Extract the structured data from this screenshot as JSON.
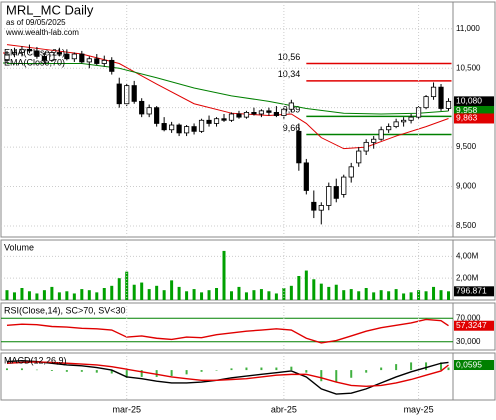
{
  "chart_data": [
    {
      "type": "candlestick",
      "title": "MRL_MC Daily",
      "subtitle": "as of 09/05/2025",
      "source": "www.wealth-lab.com",
      "xlim": [
        -0.8,
        59.6
      ],
      "ylim": [
        8360,
        11340
      ],
      "yticks": [
        {
          "value": 8500,
          "label": "8,500"
        },
        {
          "value": 9000,
          "label": "9,000"
        },
        {
          "value": 9500,
          "label": "9,500"
        },
        {
          "value": 10000,
          "label": "10,000"
        },
        {
          "value": 10500,
          "label": "10,500"
        },
        {
          "value": 11000,
          "label": "11,000"
        }
      ],
      "open": [
        10600,
        10680,
        10700,
        10740,
        10720,
        10650,
        10600,
        10700,
        10680,
        10620,
        10680,
        10580,
        10620,
        10560,
        10600,
        10300,
        10050,
        10280,
        10080,
        9920,
        10000,
        9800,
        9720,
        9780,
        9680,
        9760,
        9700,
        9840,
        9800,
        9860,
        9840,
        9920,
        9880,
        9940,
        9920,
        9960,
        9940,
        9900,
        9980,
        9700,
        9300,
        8800,
        8700,
        8760,
        9000,
        8900,
        9120,
        9300,
        9450,
        9560,
        9600,
        9720,
        9760,
        9820,
        9840,
        9880,
        10000,
        10140,
        10260,
        9990
      ],
      "high": [
        10720,
        10760,
        10780,
        10800,
        10770,
        10700,
        10720,
        10760,
        10740,
        10700,
        10720,
        10650,
        10680,
        10660,
        10640,
        10380,
        10300,
        10340,
        10120,
        10040,
        10020,
        9880,
        9820,
        9800,
        9780,
        9800,
        9860,
        9900,
        9880,
        9920,
        9940,
        9960,
        9960,
        10000,
        9980,
        10000,
        10020,
        10000,
        10100,
        9800,
        9350,
        8950,
        8800,
        9050,
        9100,
        9150,
        9300,
        9500,
        9600,
        9640,
        9760,
        9800,
        9860,
        9880,
        9920,
        10020,
        10160,
        10320,
        10300,
        10120
      ],
      "low": [
        10560,
        10640,
        10650,
        10690,
        10620,
        10560,
        10580,
        10650,
        10600,
        10580,
        10560,
        10500,
        10540,
        10520,
        10420,
        10000,
        10020,
        10050,
        9880,
        9880,
        9760,
        9700,
        9680,
        9640,
        9640,
        9660,
        9680,
        9760,
        9760,
        9820,
        9820,
        9860,
        9860,
        9900,
        9880,
        9900,
        9880,
        9860,
        9940,
        9200,
        8900,
        8600,
        8520,
        8700,
        8800,
        8860,
        9050,
        9250,
        9400,
        9480,
        9580,
        9680,
        9740,
        9760,
        9800,
        9860,
        9980,
        10100,
        9960,
        9960
      ],
      "close": [
        10680,
        10700,
        10740,
        10720,
        10650,
        10600,
        10700,
        10680,
        10620,
        10680,
        10580,
        10620,
        10560,
        10600,
        10460,
        10050,
        10280,
        10080,
        9920,
        10000,
        9800,
        9720,
        9780,
        9680,
        9760,
        9700,
        9840,
        9800,
        9860,
        9840,
        9920,
        9880,
        9940,
        9920,
        9960,
        9940,
        9900,
        9980,
        10060,
        9300,
        8950,
        8700,
        8760,
        9000,
        8850,
        9120,
        9250,
        9450,
        9560,
        9600,
        9720,
        9760,
        9820,
        9840,
        9880,
        10000,
        10140,
        10260,
        9990,
        10080
      ],
      "series": [
        {
          "name": "EMA(Close,21)",
          "color": "#e00000",
          "x": [
            0,
            5,
            10,
            15,
            20,
            25,
            30,
            35,
            38,
            40,
            42,
            45,
            48,
            52,
            56,
            59
          ],
          "values": [
            10800,
            10740,
            10680,
            10560,
            10300,
            10050,
            9930,
            9900,
            9920,
            9800,
            9620,
            9480,
            9500,
            9640,
            9760,
            9863
          ]
        },
        {
          "name": "EMA(Close,70)",
          "color": "#008000",
          "x": [
            0,
            10,
            15,
            20,
            25,
            30,
            35,
            40,
            45,
            50,
            55,
            59
          ],
          "values": [
            10560,
            10560,
            10500,
            10380,
            10250,
            10150,
            10080,
            9990,
            9930,
            9920,
            9930,
            9958
          ]
        }
      ],
      "levels": [
        {
          "value": 10560,
          "label": "10,56",
          "color": "#e00000",
          "x": [
            40,
            59.4
          ]
        },
        {
          "value": 10340,
          "label": "10,34",
          "color": "#e00000",
          "x": [
            40,
            59.4
          ]
        },
        {
          "value": 9890,
          "label": "9,89",
          "color": "#008000",
          "x": [
            40,
            59.4
          ]
        },
        {
          "value": 9660,
          "label": "9,66",
          "color": "#008000",
          "x": [
            40,
            59.4
          ]
        }
      ],
      "last_labels": [
        {
          "value": 10080,
          "label": "10,080",
          "color": "#000000"
        },
        {
          "value": 9958,
          "label": "9,958",
          "color": "#008000"
        },
        {
          "value": 9863,
          "label": "9,863",
          "color": "#e00000"
        }
      ]
    },
    {
      "type": "bar",
      "title": "Volume",
      "color": "#00a000",
      "xlim": [
        -0.8,
        59.6
      ],
      "ylim": [
        0,
        5.5
      ],
      "yticks": [
        {
          "value": 2,
          "label": "2,00M"
        },
        {
          "value": 4,
          "label": "4,00M"
        }
      ],
      "values": [
        0.9,
        0.7,
        1.1,
        0.8,
        0.6,
        0.9,
        1.2,
        0.7,
        0.8,
        0.6,
        1.0,
        0.9,
        0.7,
        1.1,
        1.3,
        2.0,
        2.6,
        1.4,
        1.6,
        1.0,
        1.3,
        0.9,
        1.8,
        1.2,
        0.8,
        1.0,
        0.7,
        0.9,
        1.1,
        4.5,
        0.8,
        1.2,
        0.7,
        0.9,
        1.0,
        0.8,
        0.6,
        1.1,
        1.3,
        2.2,
        2.7,
        1.9,
        1.5,
        1.2,
        1.4,
        0.9,
        1.0,
        0.8,
        1.1,
        0.7,
        0.9,
        0.8,
        1.0,
        0.6,
        0.7,
        0.9,
        0.8,
        1.2,
        0.9,
        0.796871
      ],
      "last_labels": [
        {
          "value": 0.796871,
          "label": "796.871",
          "color": "#000000"
        }
      ]
    },
    {
      "type": "line",
      "title": "RSI(Close,14), SC>70, SV<30",
      "xlim": [
        -0.8,
        59.6
      ],
      "ylim": [
        16,
        96
      ],
      "yticks": [
        {
          "value": 30,
          "label": "30,000"
        },
        {
          "value": 70,
          "label": "70,000"
        }
      ],
      "series": [
        {
          "name": "RSI",
          "color": "#e00000",
          "x": [
            0,
            2,
            4,
            6,
            8,
            10,
            12,
            14,
            16,
            18,
            20,
            22,
            24,
            26,
            28,
            30,
            32,
            34,
            36,
            38,
            40,
            42,
            44,
            46,
            48,
            50,
            52,
            54,
            56,
            58,
            59
          ],
          "values": [
            58,
            60,
            59,
            56,
            55,
            53,
            52,
            50,
            38,
            40,
            36,
            34,
            38,
            37,
            42,
            45,
            48,
            50,
            52,
            50,
            36,
            28,
            32,
            40,
            48,
            54,
            58,
            62,
            68,
            66,
            57.3247
          ]
        }
      ],
      "last_labels": [
        {
          "value": 57.3247,
          "label": "57,3247",
          "color": "#e00000"
        }
      ]
    },
    {
      "type": "line",
      "title": "MACD(12,26,9)",
      "xlim": [
        -0.8,
        59.6
      ],
      "ylim": [
        -0.35,
        0.2
      ],
      "xticks": [
        {
          "value": 16,
          "label": "mar-25"
        },
        {
          "value": 37,
          "label": "abr-25"
        },
        {
          "value": 55,
          "label": "may-25"
        }
      ],
      "histogram": {
        "color": "#40b040",
        "x": [
          0,
          2,
          4,
          6,
          8,
          10,
          12,
          14,
          16,
          18,
          20,
          22,
          24,
          26,
          28,
          30,
          32,
          34,
          36,
          38,
          40,
          42,
          44,
          46,
          48,
          50,
          52,
          54,
          56,
          58,
          59
        ],
        "values": [
          0.02,
          0.02,
          0.005,
          -0.01,
          -0.02,
          -0.02,
          -0.03,
          -0.04,
          -0.09,
          -0.08,
          -0.08,
          -0.07,
          -0.05,
          -0.02,
          0,
          0.02,
          0.03,
          0.03,
          0.03,
          0.04,
          -0.03,
          -0.13,
          -0.14,
          -0.09,
          -0.03,
          0.03,
          0.07,
          0.09,
          0.09,
          0.09,
          0.03
        ]
      },
      "series": [
        {
          "name": "MACD",
          "color": "#000000",
          "x": [
            0,
            2,
            4,
            6,
            8,
            10,
            12,
            14,
            16,
            18,
            20,
            22,
            24,
            26,
            28,
            30,
            32,
            34,
            36,
            38,
            40,
            42,
            44,
            46,
            48,
            50,
            52,
            54,
            56,
            58,
            59
          ],
          "values": [
            0.1,
            0.11,
            0.1,
            0.08,
            0.06,
            0.05,
            0.03,
            0.0,
            -0.08,
            -0.1,
            -0.13,
            -0.15,
            -0.15,
            -0.14,
            -0.12,
            -0.09,
            -0.07,
            -0.05,
            -0.03,
            -0.01,
            -0.08,
            -0.22,
            -0.28,
            -0.27,
            -0.22,
            -0.15,
            -0.08,
            -0.02,
            0.03,
            0.08,
            0.09
          ]
        },
        {
          "name": "Signal",
          "color": "#e00000",
          "x": [
            0,
            2,
            4,
            6,
            8,
            10,
            12,
            14,
            16,
            18,
            20,
            22,
            24,
            26,
            28,
            30,
            32,
            34,
            36,
            38,
            40,
            42,
            44,
            46,
            48,
            50,
            52,
            54,
            56,
            58,
            59
          ],
          "values": [
            0.08,
            0.09,
            0.095,
            0.09,
            0.08,
            0.07,
            0.06,
            0.04,
            0.01,
            -0.02,
            -0.05,
            -0.08,
            -0.1,
            -0.12,
            -0.12,
            -0.11,
            -0.1,
            -0.08,
            -0.06,
            -0.05,
            -0.05,
            -0.09,
            -0.14,
            -0.18,
            -0.19,
            -0.18,
            -0.15,
            -0.11,
            -0.06,
            -0.01,
            0.0595
          ]
        }
      ],
      "last_labels": [
        {
          "value": 0.0595,
          "label": "0,0595",
          "color": "#008000"
        }
      ]
    }
  ]
}
